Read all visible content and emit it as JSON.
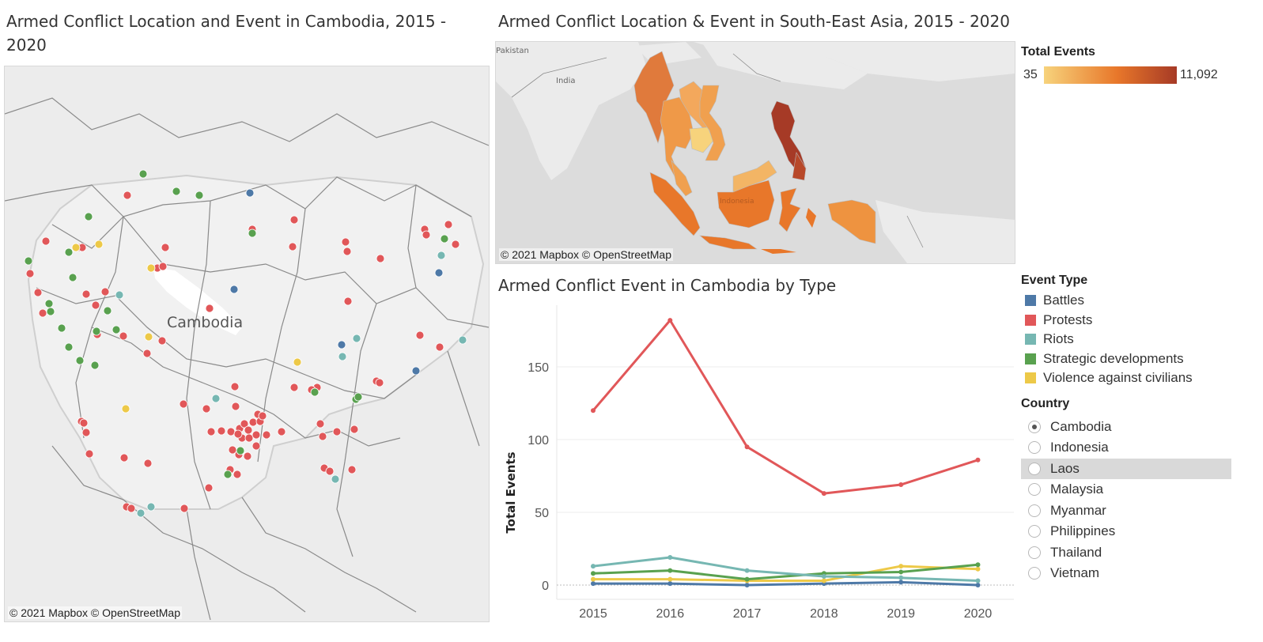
{
  "left_map": {
    "title": "Armed Conflict Location and Event in Cambodia, 2015 - 2020",
    "label": "Cambodia",
    "attribution": "© 2021 Mapbox © OpenStreetMap"
  },
  "top_map": {
    "title": "Armed Conflict Location & Event in South-East Asia, 2015 - 2020",
    "labels": [
      "Pakistan",
      "India",
      "Indonesia"
    ],
    "attribution": "© 2021 Mapbox © OpenStreetMap"
  },
  "total_events_legend": {
    "title": "Total Events",
    "min": "35",
    "max": "11,092",
    "color_low": "#f7d37c",
    "color_mid": "#e8772a",
    "color_high": "#a63a26"
  },
  "event_type_legend": {
    "title": "Event Type",
    "items": [
      {
        "label": "Battles",
        "color": "#4e79a7"
      },
      {
        "label": "Protests",
        "color": "#e15759"
      },
      {
        "label": "Riots",
        "color": "#76b7b2"
      },
      {
        "label": "Strategic developments",
        "color": "#59a14f"
      },
      {
        "label": "Violence against civilians",
        "color": "#edc948"
      }
    ]
  },
  "country_filter": {
    "title": "Country",
    "options": [
      {
        "label": "Cambodia",
        "selected": true
      },
      {
        "label": "Indonesia",
        "selected": false
      },
      {
        "label": "Laos",
        "selected": false,
        "hover": true
      },
      {
        "label": "Malaysia",
        "selected": false
      },
      {
        "label": "Myanmar",
        "selected": false
      },
      {
        "label": "Philippines",
        "selected": false
      },
      {
        "label": "Thailand",
        "selected": false
      },
      {
        "label": "Vietnam",
        "selected": false
      }
    ]
  },
  "chart_data": {
    "type": "line",
    "title": "Armed Conflict Event in Cambodia by Type",
    "xlabel": "",
    "ylabel": "Total Events",
    "x": [
      "2015",
      "2016",
      "2017",
      "2018",
      "2019",
      "2020"
    ],
    "ylim": [
      0,
      190
    ],
    "yticks": [
      0,
      50,
      100,
      150
    ],
    "grid": true,
    "series": [
      {
        "name": "Protests",
        "color": "#e15759",
        "values": [
          120,
          182,
          95,
          63,
          69,
          86
        ]
      },
      {
        "name": "Riots",
        "color": "#76b7b2",
        "values": [
          13,
          19,
          10,
          6,
          5,
          3
        ]
      },
      {
        "name": "Strategic developments",
        "color": "#59a14f",
        "values": [
          8,
          10,
          4,
          8,
          9,
          14
        ]
      },
      {
        "name": "Violence against civilians",
        "color": "#edc948",
        "values": [
          4,
          4,
          3,
          3,
          13,
          11
        ]
      },
      {
        "name": "Battles",
        "color": "#4e79a7",
        "values": [
          1,
          1,
          0,
          1,
          2,
          0
        ]
      }
    ]
  }
}
